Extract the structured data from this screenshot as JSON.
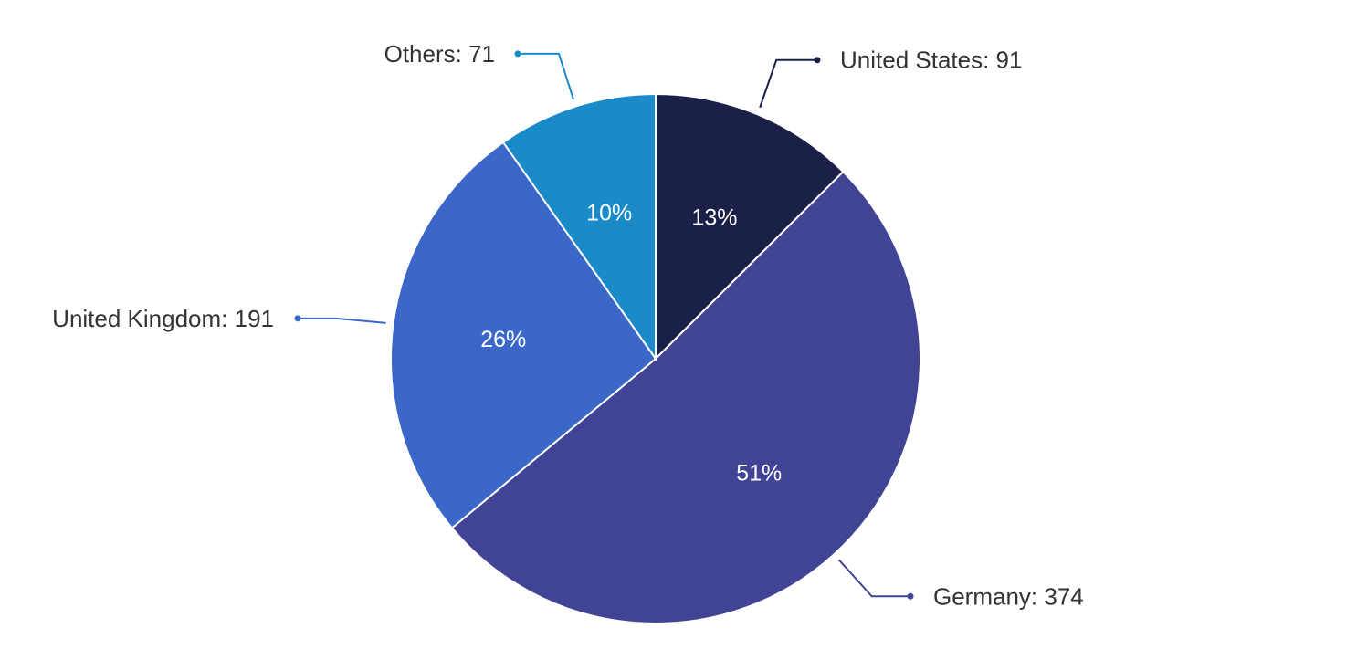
{
  "chart_data": {
    "type": "pie",
    "title": "",
    "start_angle_deg": 0,
    "direction": "clockwise",
    "slices": [
      {
        "name": "United States",
        "value": 91,
        "percent_label": "13%",
        "color": "#1b2049"
      },
      {
        "name": "Germany",
        "value": 374,
        "percent_label": "51%",
        "color": "#414494"
      },
      {
        "name": "United Kingdom",
        "value": 191,
        "percent_label": "26%",
        "color": "#3a67c8"
      },
      {
        "name": "Others",
        "value": 71,
        "percent_label": "10%",
        "color": "#1a8ac9"
      }
    ],
    "callout_labels": [
      "United States: 91",
      "Germany: 374",
      "United Kingdom: 191",
      "Others: 71"
    ],
    "legend": "none"
  }
}
